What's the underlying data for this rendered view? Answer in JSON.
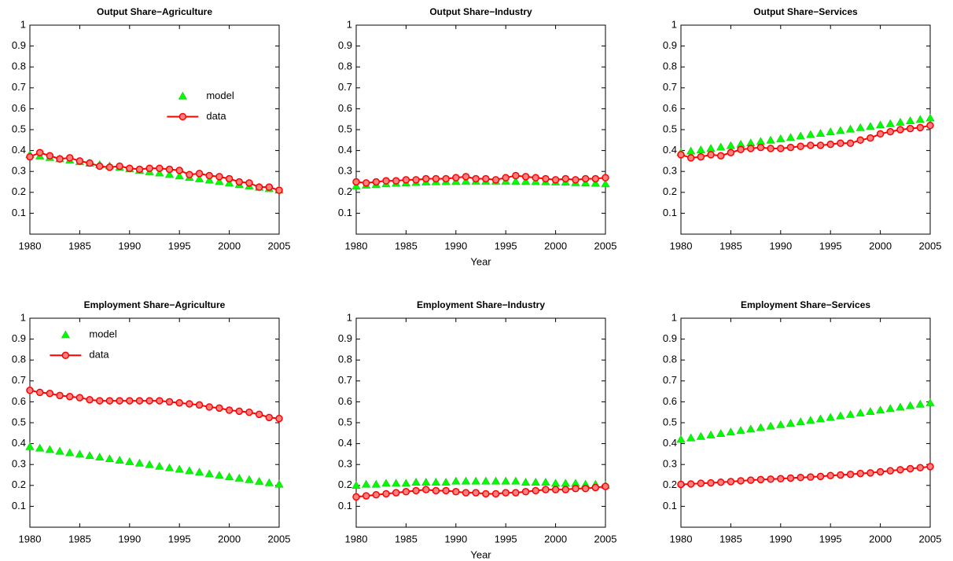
{
  "chart_data": [
    {
      "type": "line",
      "title": "Output Share−Agriculture",
      "x": [
        1980,
        1981,
        1982,
        1983,
        1984,
        1985,
        1986,
        1987,
        1988,
        1989,
        1990,
        1991,
        1992,
        1993,
        1994,
        1995,
        1996,
        1997,
        1998,
        1999,
        2000,
        2001,
        2002,
        2003,
        2004,
        2005
      ],
      "xlim": [
        1980,
        2005
      ],
      "xticks": [
        1980,
        1985,
        1990,
        1995,
        2000,
        2005
      ],
      "ylim": [
        0,
        1
      ],
      "yticks": [
        0.1,
        0.2,
        0.3,
        0.4,
        0.5,
        0.6,
        0.7,
        0.8,
        0.9,
        1
      ],
      "legend": "center right",
      "series": [
        {
          "name": "model",
          "color": "#00ff00",
          "marker": "triangle",
          "line": false,
          "values": [
            0.38,
            0.373,
            0.366,
            0.36,
            0.353,
            0.346,
            0.339,
            0.332,
            0.326,
            0.319,
            0.312,
            0.305,
            0.298,
            0.292,
            0.285,
            0.278,
            0.271,
            0.264,
            0.258,
            0.251,
            0.244,
            0.237,
            0.23,
            0.224,
            0.217,
            0.21
          ]
        },
        {
          "name": "data",
          "color": "#ff0000",
          "marker": "circle",
          "line": true,
          "values": [
            0.37,
            0.39,
            0.375,
            0.36,
            0.365,
            0.35,
            0.34,
            0.325,
            0.32,
            0.325,
            0.315,
            0.31,
            0.315,
            0.315,
            0.31,
            0.305,
            0.285,
            0.29,
            0.28,
            0.275,
            0.265,
            0.25,
            0.245,
            0.225,
            0.225,
            0.21
          ]
        }
      ]
    },
    {
      "type": "line",
      "title": "Output Share−Industry",
      "xlabel": "Year",
      "x": [
        1980,
        1981,
        1982,
        1983,
        1984,
        1985,
        1986,
        1987,
        1988,
        1989,
        1990,
        1991,
        1992,
        1993,
        1994,
        1995,
        1996,
        1997,
        1998,
        1999,
        2000,
        2001,
        2002,
        2003,
        2004,
        2005
      ],
      "xlim": [
        1980,
        2005
      ],
      "xticks": [
        1980,
        1985,
        1990,
        1995,
        2000,
        2005
      ],
      "ylim": [
        0,
        1
      ],
      "yticks": [
        0.1,
        0.2,
        0.3,
        0.4,
        0.5,
        0.6,
        0.7,
        0.8,
        0.9,
        1
      ],
      "series": [
        {
          "color": "#00ff00",
          "marker": "triangle",
          "line": false,
          "values": [
            0.23,
            0.234,
            0.237,
            0.24,
            0.243,
            0.245,
            0.247,
            0.249,
            0.25,
            0.251,
            0.252,
            0.253,
            0.253,
            0.253,
            0.253,
            0.253,
            0.252,
            0.252,
            0.251,
            0.25,
            0.249,
            0.248,
            0.246,
            0.245,
            0.243,
            0.24
          ]
        },
        {
          "color": "#ff0000",
          "marker": "circle",
          "line": true,
          "values": [
            0.25,
            0.245,
            0.25,
            0.255,
            0.255,
            0.26,
            0.26,
            0.265,
            0.265,
            0.265,
            0.27,
            0.275,
            0.265,
            0.265,
            0.26,
            0.27,
            0.28,
            0.275,
            0.27,
            0.265,
            0.26,
            0.265,
            0.26,
            0.265,
            0.265,
            0.27
          ]
        }
      ]
    },
    {
      "type": "line",
      "title": "Output Share−Services",
      "x": [
        1980,
        1981,
        1982,
        1983,
        1984,
        1985,
        1986,
        1987,
        1988,
        1989,
        1990,
        1991,
        1992,
        1993,
        1994,
        1995,
        1996,
        1997,
        1998,
        1999,
        2000,
        2001,
        2002,
        2003,
        2004,
        2005
      ],
      "xlim": [
        1980,
        2005
      ],
      "xticks": [
        1980,
        1985,
        1990,
        1995,
        2000,
        2005
      ],
      "ylim": [
        0,
        1
      ],
      "yticks": [
        0.1,
        0.2,
        0.3,
        0.4,
        0.5,
        0.6,
        0.7,
        0.8,
        0.9,
        1
      ],
      "series": [
        {
          "color": "#00ff00",
          "marker": "triangle",
          "line": false,
          "values": [
            0.39,
            0.397,
            0.403,
            0.41,
            0.416,
            0.423,
            0.43,
            0.436,
            0.443,
            0.449,
            0.456,
            0.462,
            0.469,
            0.476,
            0.482,
            0.489,
            0.495,
            0.502,
            0.509,
            0.515,
            0.522,
            0.528,
            0.535,
            0.542,
            0.548,
            0.555
          ]
        },
        {
          "color": "#ff0000",
          "marker": "circle",
          "line": true,
          "values": [
            0.38,
            0.365,
            0.37,
            0.38,
            0.375,
            0.39,
            0.405,
            0.41,
            0.415,
            0.41,
            0.41,
            0.415,
            0.42,
            0.425,
            0.425,
            0.43,
            0.435,
            0.435,
            0.45,
            0.46,
            0.48,
            0.49,
            0.5,
            0.505,
            0.51,
            0.52
          ]
        }
      ]
    },
    {
      "type": "line",
      "title": "Employment Share−Agriculture",
      "x": [
        1980,
        1981,
        1982,
        1983,
        1984,
        1985,
        1986,
        1987,
        1988,
        1989,
        1990,
        1991,
        1992,
        1993,
        1994,
        1995,
        1996,
        1997,
        1998,
        1999,
        2000,
        2001,
        2002,
        2003,
        2004,
        2005
      ],
      "xlim": [
        1980,
        2005
      ],
      "xticks": [
        1980,
        1985,
        1990,
        1995,
        2000,
        2005
      ],
      "ylim": [
        0,
        1
      ],
      "yticks": [
        0.1,
        0.2,
        0.3,
        0.4,
        0.5,
        0.6,
        0.7,
        0.8,
        0.9,
        1
      ],
      "legend": "upper left",
      "series": [
        {
          "name": "model",
          "color": "#00ff00",
          "marker": "triangle",
          "line": false,
          "values": [
            0.385,
            0.378,
            0.371,
            0.363,
            0.356,
            0.349,
            0.342,
            0.335,
            0.327,
            0.32,
            0.313,
            0.306,
            0.299,
            0.291,
            0.284,
            0.277,
            0.27,
            0.263,
            0.255,
            0.248,
            0.241,
            0.234,
            0.227,
            0.219,
            0.212,
            0.205
          ]
        },
        {
          "name": "data",
          "color": "#ff0000",
          "marker": "circle",
          "line": true,
          "values": [
            0.655,
            0.645,
            0.64,
            0.63,
            0.625,
            0.62,
            0.61,
            0.605,
            0.605,
            0.605,
            0.605,
            0.605,
            0.605,
            0.605,
            0.6,
            0.595,
            0.59,
            0.585,
            0.575,
            0.57,
            0.56,
            0.555,
            0.55,
            0.54,
            0.525,
            0.52
          ]
        }
      ]
    },
    {
      "type": "line",
      "title": "Employment Share−Industry",
      "xlabel": "Year",
      "x": [
        1980,
        1981,
        1982,
        1983,
        1984,
        1985,
        1986,
        1987,
        1988,
        1989,
        1990,
        1991,
        1992,
        1993,
        1994,
        1995,
        1996,
        1997,
        1998,
        1999,
        2000,
        2001,
        2002,
        2003,
        2004,
        2005
      ],
      "xlim": [
        1980,
        2005
      ],
      "xticks": [
        1980,
        1985,
        1990,
        1995,
        2000,
        2005
      ],
      "ylim": [
        0,
        1
      ],
      "yticks": [
        0.1,
        0.2,
        0.3,
        0.4,
        0.5,
        0.6,
        0.7,
        0.8,
        0.9,
        1
      ],
      "series": [
        {
          "color": "#00ff00",
          "marker": "triangle",
          "line": false,
          "values": [
            0.2,
            0.205,
            0.205,
            0.21,
            0.21,
            0.21,
            0.215,
            0.215,
            0.215,
            0.215,
            0.22,
            0.22,
            0.22,
            0.22,
            0.22,
            0.22,
            0.22,
            0.215,
            0.215,
            0.215,
            0.21,
            0.21,
            0.21,
            0.205,
            0.205,
            0.2
          ]
        },
        {
          "color": "#ff0000",
          "marker": "circle",
          "line": true,
          "values": [
            0.145,
            0.15,
            0.155,
            0.16,
            0.165,
            0.17,
            0.175,
            0.18,
            0.175,
            0.175,
            0.17,
            0.165,
            0.165,
            0.16,
            0.16,
            0.165,
            0.165,
            0.17,
            0.175,
            0.18,
            0.18,
            0.18,
            0.185,
            0.185,
            0.19,
            0.195
          ]
        }
      ]
    },
    {
      "type": "line",
      "title": "Employment Share−Services",
      "x": [
        1980,
        1981,
        1982,
        1983,
        1984,
        1985,
        1986,
        1987,
        1988,
        1989,
        1990,
        1991,
        1992,
        1993,
        1994,
        1995,
        1996,
        1997,
        1998,
        1999,
        2000,
        2001,
        2002,
        2003,
        2004,
        2005
      ],
      "xlim": [
        1980,
        2005
      ],
      "xticks": [
        1980,
        1985,
        1990,
        1995,
        2000,
        2005
      ],
      "ylim": [
        0,
        1
      ],
      "yticks": [
        0.1,
        0.2,
        0.3,
        0.4,
        0.5,
        0.6,
        0.7,
        0.8,
        0.9,
        1
      ],
      "series": [
        {
          "color": "#00ff00",
          "marker": "triangle",
          "line": false,
          "values": [
            0.42,
            0.427,
            0.434,
            0.441,
            0.448,
            0.455,
            0.462,
            0.469,
            0.476,
            0.483,
            0.49,
            0.497,
            0.504,
            0.511,
            0.518,
            0.525,
            0.532,
            0.539,
            0.546,
            0.553,
            0.56,
            0.567,
            0.574,
            0.581,
            0.588,
            0.595
          ]
        },
        {
          "color": "#ff0000",
          "marker": "circle",
          "line": true,
          "values": [
            0.205,
            0.207,
            0.21,
            0.212,
            0.215,
            0.218,
            0.222,
            0.225,
            0.228,
            0.23,
            0.232,
            0.235,
            0.238,
            0.24,
            0.243,
            0.247,
            0.25,
            0.253,
            0.257,
            0.26,
            0.265,
            0.27,
            0.275,
            0.28,
            0.285,
            0.29
          ]
        }
      ]
    }
  ]
}
